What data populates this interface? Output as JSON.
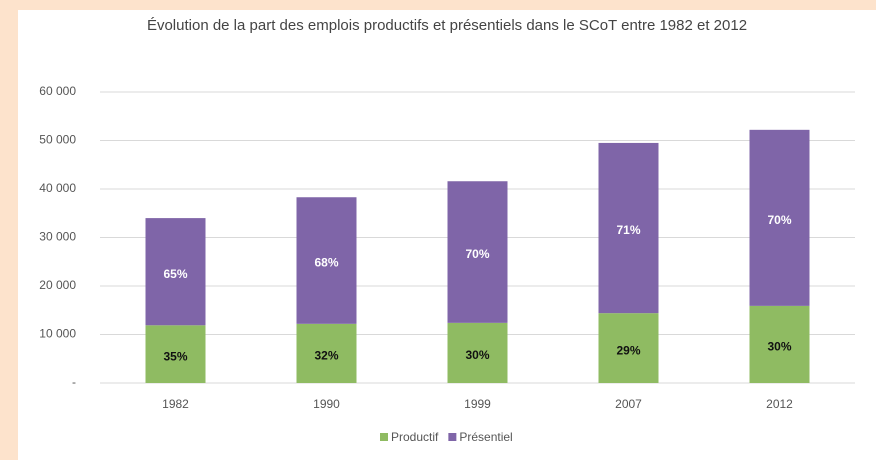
{
  "chart_data": {
    "type": "stacked_bar",
    "title": "Évolution de la part des emplois productifs et présentiels dans le SCoT entre 1982 et 2012",
    "categories": [
      "1982",
      "1990",
      "1999",
      "2007",
      "2012"
    ],
    "series": [
      {
        "name": "Productif",
        "color": "#8fbb62",
        "values": [
          11900,
          12200,
          12400,
          14400,
          15900
        ],
        "labels": [
          "35%",
          "32%",
          "30%",
          "29%",
          "30%"
        ]
      },
      {
        "name": "Présentiel",
        "color": "#7f65a8",
        "values": [
          22100,
          26100,
          29200,
          35100,
          36300
        ],
        "labels": [
          "65%",
          "68%",
          "70%",
          "71%",
          "70%"
        ]
      }
    ],
    "ylim": [
      0,
      60000
    ],
    "yticks": [
      {
        "value": 0,
        "label": "-"
      },
      {
        "value": 10000,
        "label": "10 000"
      },
      {
        "value": 20000,
        "label": "20 000"
      },
      {
        "value": 30000,
        "label": "30 000"
      },
      {
        "value": 40000,
        "label": "40 000"
      },
      {
        "value": 50000,
        "label": "50 000"
      },
      {
        "value": 60000,
        "label": "60 000"
      }
    ],
    "grid": true,
    "legend": "bottom"
  }
}
